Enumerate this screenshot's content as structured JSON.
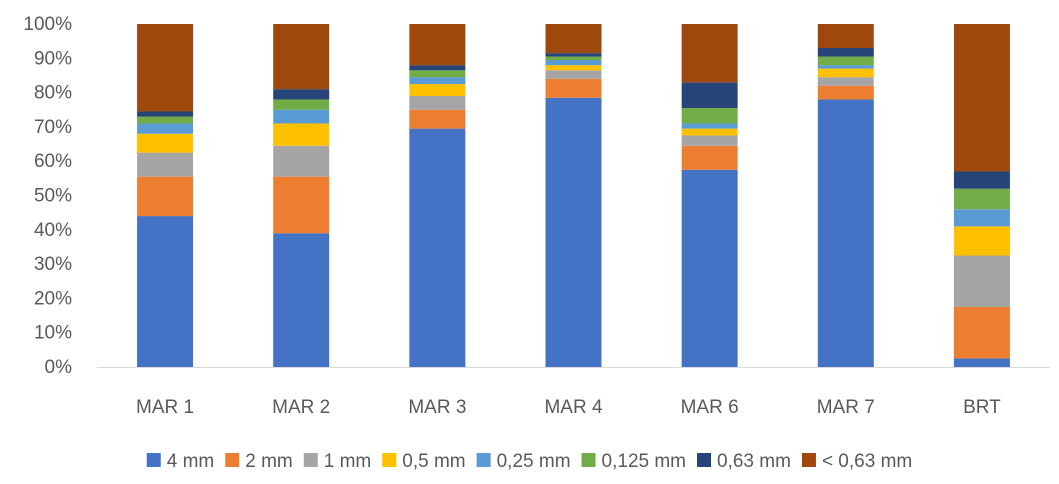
{
  "chart_data": {
    "type": "bar",
    "stacked": "percent",
    "categories": [
      "MAR 1",
      "MAR 2",
      "MAR 3",
      "MAR 4",
      "MAR 6",
      "MAR 7",
      "BRT"
    ],
    "series": [
      {
        "name": "4 mm",
        "color": "#4472C4",
        "values": [
          44,
          39,
          69.5,
          78.5,
          57.5,
          78,
          2.5
        ]
      },
      {
        "name": "2 mm",
        "color": "#ED7D31",
        "values": [
          11.5,
          16.5,
          5.5,
          5.5,
          7,
          4,
          15
        ]
      },
      {
        "name": "1 mm",
        "color": "#A5A5A5",
        "values": [
          7,
          9,
          4,
          2.5,
          3,
          2.5,
          15
        ]
      },
      {
        "name": "0,5 mm",
        "color": "#FFC000",
        "values": [
          5.5,
          6.5,
          3.5,
          1.5,
          2,
          2.5,
          8.5
        ]
      },
      {
        "name": "0,25 mm",
        "color": "#5B9BD5",
        "values": [
          3,
          4,
          2,
          1.5,
          1.5,
          1,
          5
        ]
      },
      {
        "name": "0,125 mm",
        "color": "#70AD47",
        "values": [
          2,
          3,
          2,
          1,
          4.5,
          2.5,
          6
        ]
      },
      {
        "name": "0,63 mm",
        "color": "#264478",
        "values": [
          1.5,
          3,
          1.5,
          1,
          7.5,
          2.5,
          5
        ]
      },
      {
        "name": "< 0,63 mm",
        "color": "#9E480E",
        "values": [
          25.5,
          19,
          12,
          8.5,
          17,
          7,
          43
        ]
      }
    ],
    "y_ticks": [
      "0%",
      "10%",
      "20%",
      "30%",
      "40%",
      "50%",
      "60%",
      "70%",
      "80%",
      "90%",
      "100%"
    ],
    "ylim": [
      0,
      100
    ],
    "grid": false,
    "legend_position": "bottom"
  }
}
